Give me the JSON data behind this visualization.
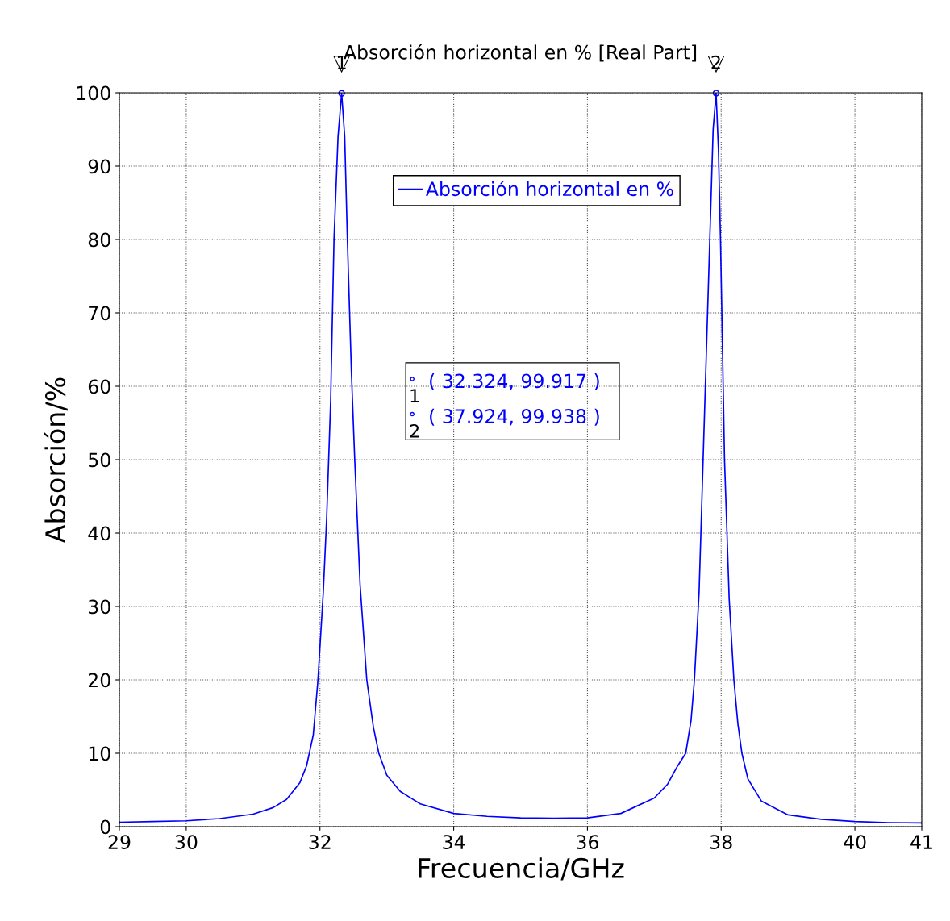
{
  "chart_data": {
    "type": "line",
    "title": "Absorción horizontal en % [Real Part]",
    "xlabel": "Frecuencia/GHz",
    "ylabel": "Absorción/%",
    "series": [
      {
        "name": "Absorción horizontal en %",
        "color": "#0000ff",
        "x": [
          29,
          29.5,
          30,
          30.5,
          31,
          31.3,
          31.5,
          31.7,
          31.8,
          31.9,
          31.97,
          32.05,
          32.1,
          32.16,
          32.21,
          32.27,
          32.324,
          32.37,
          32.41,
          32.47,
          32.52,
          32.6,
          32.7,
          32.8,
          32.88,
          33,
          33.2,
          33.5,
          34,
          34.5,
          35,
          35.5,
          36,
          36.5,
          37,
          37.2,
          37.35,
          37.47,
          37.55,
          37.6,
          37.67,
          37.73,
          37.78,
          37.83,
          37.88,
          37.924,
          37.96,
          37.99,
          38.05,
          38.12,
          38.19,
          38.25,
          38.31,
          38.4,
          38.6,
          39,
          39.5,
          40,
          40.5,
          41
        ],
        "values": [
          0.6,
          0.7,
          0.8,
          1.1,
          1.7,
          2.6,
          3.7,
          6.0,
          8.3,
          12.5,
          20,
          32,
          42,
          58,
          80,
          94,
          99.917,
          94,
          80,
          62,
          50,
          33,
          20,
          13.5,
          10,
          7,
          4.8,
          3.1,
          1.8,
          1.4,
          1.2,
          1.15,
          1.2,
          1.8,
          3.9,
          5.8,
          8.3,
          10,
          14.5,
          20,
          32,
          50,
          65,
          80,
          95,
          99.938,
          92,
          80,
          50,
          31,
          20,
          14,
          10,
          6.5,
          3.5,
          1.6,
          1.0,
          0.7,
          0.55,
          0.5
        ]
      }
    ],
    "xlim": [
      29,
      41
    ],
    "xticks": [
      29,
      30,
      32,
      34,
      36,
      38,
      40,
      41
    ],
    "ylim": [
      0,
      100
    ],
    "yticks": [
      0,
      10,
      20,
      30,
      40,
      50,
      60,
      70,
      80,
      90,
      100
    ],
    "grid": true,
    "legend": "top",
    "line_style": "solid",
    "marker": "none",
    "annotations": [
      {
        "text": "1",
        "x": 32.324,
        "y": 99.917
      },
      {
        "text": "2",
        "x": 37.924,
        "y": 99.938
      },
      "( 32.324, 99.917 )",
      "( 37.924, 99.938 )"
    ]
  }
}
